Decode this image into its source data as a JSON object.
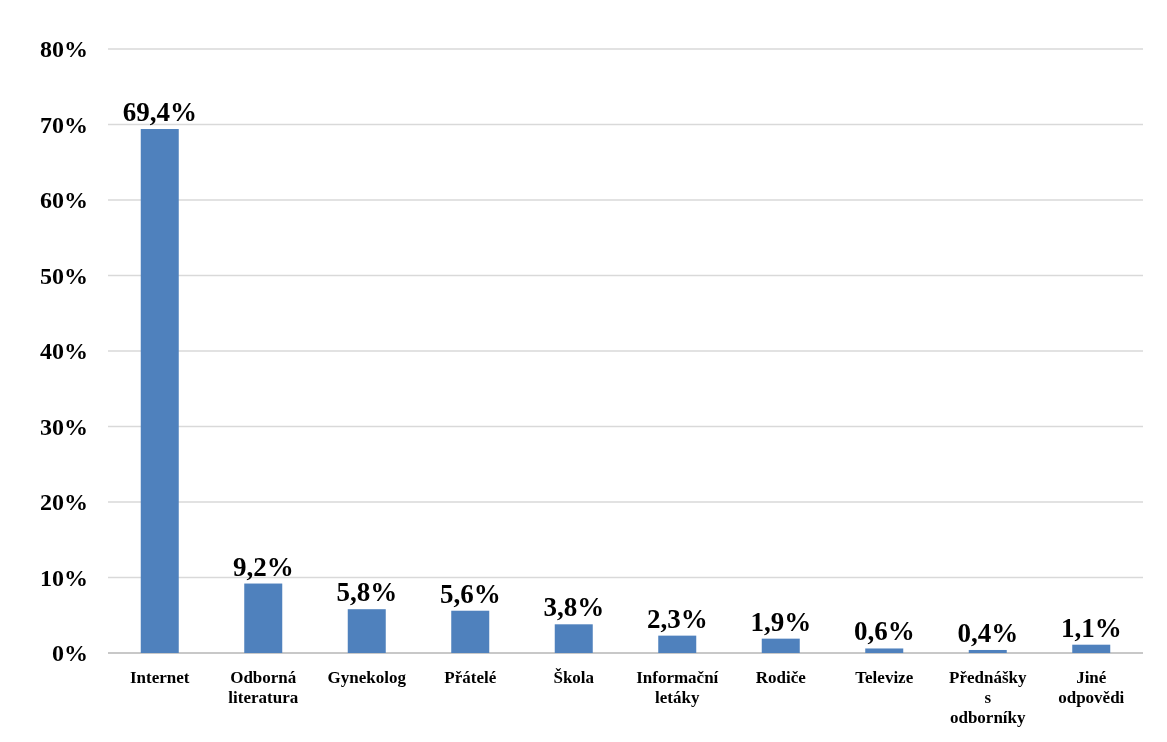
{
  "chart_data": {
    "type": "bar",
    "categories": [
      "Internet",
      "Odborná literatura",
      "Gynekolog",
      "Přátelé",
      "Škola",
      "Informační letáky",
      "Rodiče",
      "Televize",
      "Přednášky s odborníky",
      "Jiné odpovědi"
    ],
    "values": [
      69.4,
      9.2,
      5.8,
      5.6,
      3.8,
      2.3,
      1.9,
      0.6,
      0.4,
      1.1
    ],
    "value_labels": [
      "69,4%",
      "9,2%",
      "5,8%",
      "5,6%",
      "3,8%",
      "2,3%",
      "1,9%",
      "0,6%",
      "0,4%",
      "1,1%"
    ],
    "color": "#4f81bd",
    "ylim": [
      0,
      80
    ],
    "yticks": [
      {
        "value": 0,
        "label": "0%"
      },
      {
        "value": 10,
        "label": "10%"
      },
      {
        "value": 20,
        "label": "20%"
      },
      {
        "value": 30,
        "label": "30%"
      },
      {
        "value": 40,
        "label": "40%"
      },
      {
        "value": 50,
        "label": "50%"
      },
      {
        "value": 60,
        "label": "60%"
      },
      {
        "value": 70,
        "label": "70%"
      },
      {
        "value": 80,
        "label": "80%"
      }
    ],
    "grid": "y"
  }
}
